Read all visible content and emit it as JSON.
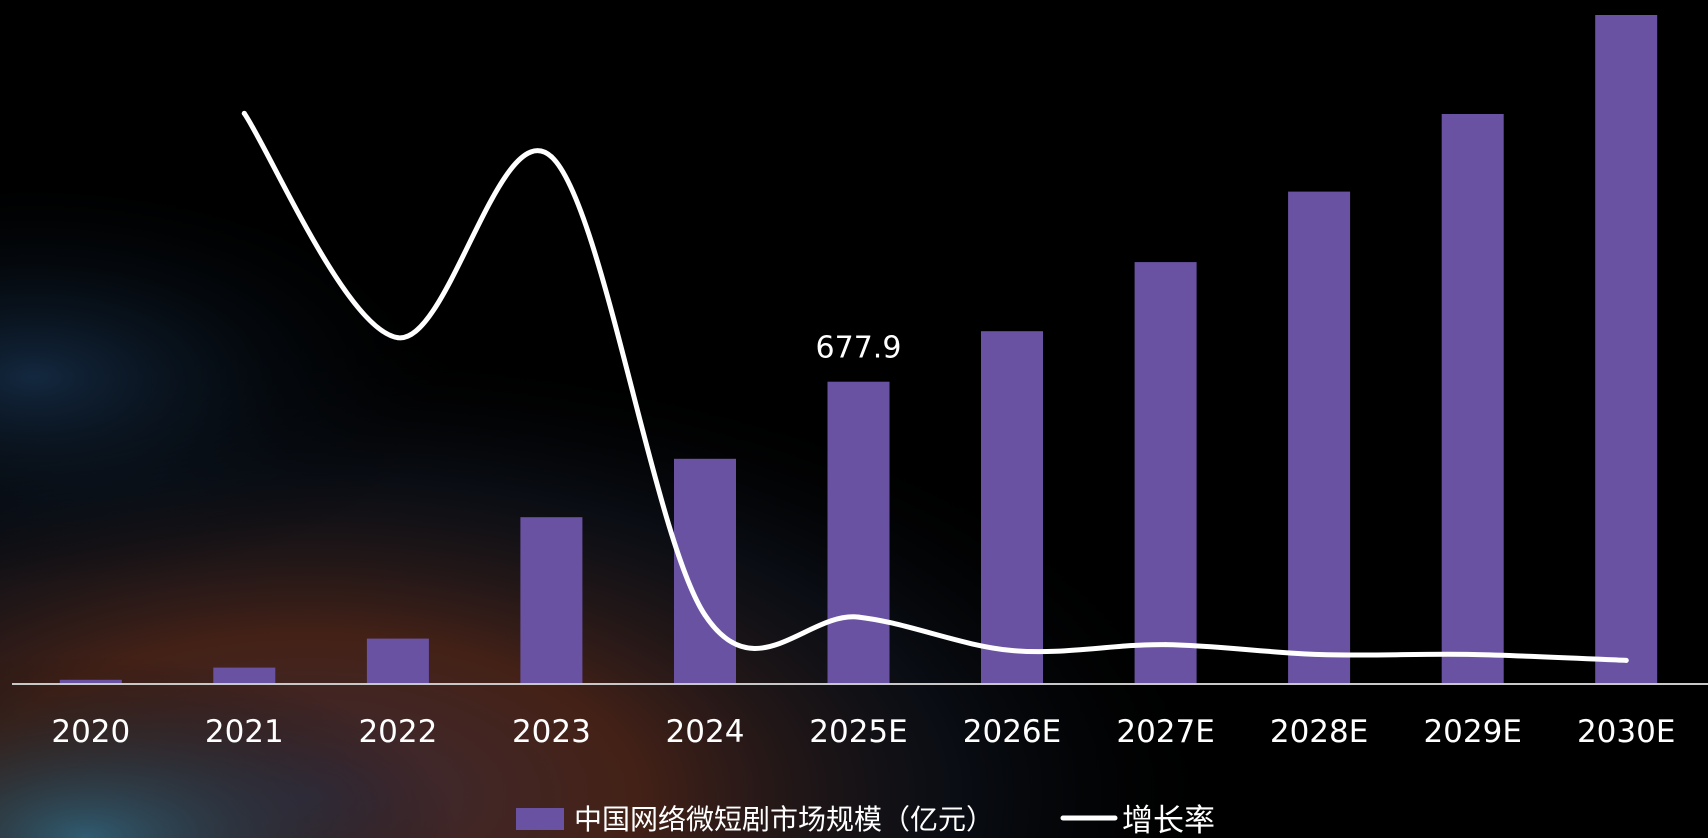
{
  "chart_data": {
    "type": "bar",
    "categories": [
      "2020",
      "2021",
      "2022",
      "2023",
      "2024",
      "2025E",
      "2026E",
      "2027E",
      "2028E",
      "2029E",
      "2030E"
    ],
    "series": [
      {
        "name": "中国网络微短剧市场规模（亿元）",
        "kind": "bar",
        "axis": "left",
        "values": [
          9.4,
          36.8,
          101.7,
          373.9,
          505.0,
          677.9,
          791.0,
          946.0,
          1104.0,
          1278.0,
          1500.0
        ],
        "color": "#6a52a3"
      },
      {
        "name": "增长率",
        "kind": "line",
        "axis": "right",
        "values": [
          null,
          2.9,
          1.76,
          2.68,
          0.35,
          0.34,
          0.17,
          0.2,
          0.15,
          0.15,
          0.12
        ],
        "color": "#ffffff"
      }
    ],
    "data_labels": [
      {
        "category": "2025E",
        "text": "677.9"
      }
    ],
    "ylim_left": [
      0,
      1500
    ],
    "ylim_right": [
      0,
      3.4
    ],
    "grid": false,
    "legend_position": "bottom-center",
    "xlabel": "",
    "ylabel": "",
    "title": ""
  },
  "colors": {
    "background": "#000000",
    "bar": "#6a52a3",
    "line": "#ffffff",
    "axis": "#c8c8c8"
  }
}
